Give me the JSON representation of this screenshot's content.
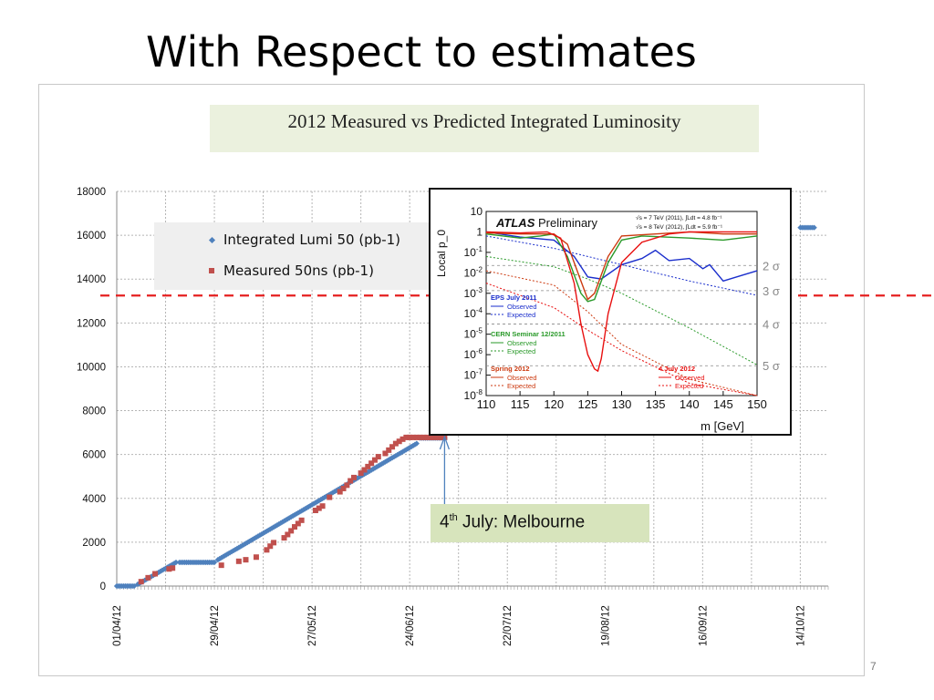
{
  "slide": {
    "title": "With Respect to estimates",
    "page_number": "7"
  },
  "annotation": {
    "prefix": "4",
    "sup": "th",
    "suffix": " July: Melbourne"
  },
  "chart_data": [
    {
      "type": "scatter",
      "title": "2012 Measured vs Predicted Integrated Luminosity",
      "xlabel": "",
      "ylabel": "",
      "x_type": "date",
      "xlim": [
        "2012-04-01",
        "2012-10-22"
      ],
      "ylim": [
        0,
        18000
      ],
      "y_ticks": [
        0,
        2000,
        4000,
        6000,
        8000,
        10000,
        12000,
        14000,
        16000,
        18000
      ],
      "x_tick_labels": [
        "01/04/12",
        "29/04/12",
        "27/05/12",
        "24/06/12",
        "22/07/12",
        "19/08/12",
        "16/09/12",
        "14/10/12"
      ],
      "grid": true,
      "legend_position": "top-left",
      "reference_line": {
        "y": 13250,
        "style": "dashed",
        "color": "#e52020"
      },
      "arrow_annotation": {
        "x": "2012-07-04",
        "label": "4th July: Melbourne"
      },
      "series": [
        {
          "name": "Integrated Lumi 50 (pb-1)",
          "marker": "diamond",
          "color": "#4f81bd",
          "segments": [
            {
              "from": "2012-04-01",
              "to": "2012-04-06",
              "y_from": 0,
              "y_to": 0
            },
            {
              "from": "2012-04-07",
              "to": "2012-04-18",
              "y_from": 80,
              "y_to": 1080
            },
            {
              "from": "2012-04-19",
              "to": "2012-04-29",
              "y_from": 1080,
              "y_to": 1080
            },
            {
              "from": "2012-04-30",
              "to": "2012-06-26",
              "y_from": 1200,
              "y_to": 6500
            },
            {
              "from": "2012-06-27",
              "to": "2012-07-04",
              "y_from": 6750,
              "y_to": 6750
            },
            {
              "from": "2012-10-14",
              "to": "2012-10-18",
              "y_from": 16350,
              "y_to": 16350
            }
          ]
        },
        {
          "name": "Measured 50ns (pb-1)",
          "marker": "square",
          "color": "#c0504d",
          "points": [
            [
              "2012-04-08",
              200
            ],
            [
              "2012-04-10",
              380
            ],
            [
              "2012-04-12",
              560
            ],
            [
              "2012-04-16",
              780
            ],
            [
              "2012-04-17",
              820
            ],
            [
              "2012-05-01",
              950
            ],
            [
              "2012-05-06",
              1130
            ],
            [
              "2012-05-08",
              1200
            ],
            [
              "2012-05-11",
              1320
            ],
            [
              "2012-05-14",
              1650
            ],
            [
              "2012-05-15",
              1820
            ],
            [
              "2012-05-16",
              1980
            ],
            [
              "2012-05-19",
              2200
            ],
            [
              "2012-05-20",
              2350
            ],
            [
              "2012-05-21",
              2520
            ],
            [
              "2012-05-22",
              2700
            ],
            [
              "2012-05-23",
              2850
            ],
            [
              "2012-05-24",
              3000
            ],
            [
              "2012-05-28",
              3450
            ],
            [
              "2012-05-29",
              3550
            ],
            [
              "2012-05-30",
              3650
            ],
            [
              "2012-06-01",
              4050
            ],
            [
              "2012-06-04",
              4300
            ],
            [
              "2012-06-05",
              4450
            ],
            [
              "2012-06-06",
              4600
            ],
            [
              "2012-06-07",
              4800
            ],
            [
              "2012-06-08",
              4950
            ],
            [
              "2012-06-10",
              5150
            ],
            [
              "2012-06-11",
              5300
            ],
            [
              "2012-06-12",
              5450
            ],
            [
              "2012-06-13",
              5600
            ],
            [
              "2012-06-14",
              5750
            ],
            [
              "2012-06-15",
              5900
            ],
            [
              "2012-06-17",
              6050
            ],
            [
              "2012-06-18",
              6200
            ],
            [
              "2012-06-19",
              6350
            ],
            [
              "2012-06-20",
              6500
            ],
            [
              "2012-06-21",
              6600
            ],
            [
              "2012-06-22",
              6700
            ],
            [
              "2012-06-23",
              6780
            ],
            [
              "2012-06-24",
              6780
            ],
            [
              "2012-06-25",
              6780
            ],
            [
              "2012-06-26",
              6780
            ],
            [
              "2012-06-27",
              6780
            ],
            [
              "2012-06-28",
              6780
            ],
            [
              "2012-06-29",
              6780
            ],
            [
              "2012-06-30",
              6780
            ],
            [
              "2012-07-01",
              6780
            ],
            [
              "2012-07-02",
              6780
            ],
            [
              "2012-07-03",
              6780
            ],
            [
              "2012-07-04",
              6780
            ]
          ]
        }
      ]
    },
    {
      "type": "line",
      "title": "ATLAS Preliminary",
      "xlabel": "m_H [GeV]",
      "ylabel": "Local p_0",
      "xlim": [
        110,
        150
      ],
      "ylim_log10": [
        -8,
        1
      ],
      "y_scale": "log",
      "x_ticks": [
        110,
        115,
        120,
        125,
        130,
        135,
        140,
        145,
        150
      ],
      "y_tick_labels": [
        "10",
        "1",
        "10-1",
        "10-2",
        "10-3",
        "10-4",
        "10-5",
        "10-6",
        "10-7",
        "10-8"
      ],
      "info_lines": [
        "√s = 7 TeV (2011), ∫Ldt = 4.8 fb⁻¹",
        "√s = 8 TeV (2012), ∫Ldt = 5.9 fb⁻¹"
      ],
      "sigma_labels": [
        "2 σ",
        "3 σ",
        "4 σ",
        "5 σ"
      ],
      "sigma_levels_log10": [
        -1.64,
        -2.87,
        -4.5,
        -6.54
      ],
      "legend_groups": [
        {
          "title": "EPS July 2011",
          "color": "#1a2ecc",
          "observed": "Observed",
          "expected": "Expected"
        },
        {
          "title": "CERN Seminar 12/2011",
          "color": "#2a9a2a",
          "observed": "Observed",
          "expected": "Expected"
        },
        {
          "title": "Spring 2012",
          "color": "#cc3a10",
          "observed": "Observed",
          "expected": "Expected"
        },
        {
          "title": "4 July 2012",
          "color": "#e81010",
          "observed": "Observed",
          "expected": "Expected"
        }
      ],
      "series": [
        {
          "name": "EPS July 2011 Observed",
          "color": "#1a2ecc",
          "dash": false,
          "x": [
            110,
            115,
            120,
            123,
            125,
            127,
            130,
            133,
            135,
            137,
            140,
            142,
            143,
            145,
            148,
            150
          ],
          "y_log10": [
            0,
            -0.25,
            -0.4,
            -1.2,
            -2.2,
            -2.3,
            -1.6,
            -1.3,
            -0.9,
            -1.4,
            -1.3,
            -1.8,
            -1.6,
            -2.4,
            -2.1,
            -1.9
          ]
        },
        {
          "name": "EPS July 2011 Expected",
          "color": "#1a2ecc",
          "dash": true,
          "x": [
            110,
            120,
            130,
            140,
            150
          ],
          "y_log10": [
            -0.2,
            -0.8,
            -1.6,
            -2.4,
            -3.1
          ]
        },
        {
          "name": "CERN Seminar 12/2011 Observed",
          "color": "#2a9a2a",
          "dash": false,
          "x": [
            110,
            115,
            118,
            120,
            122,
            124,
            125,
            126,
            128,
            130,
            133,
            140,
            145,
            150
          ],
          "y_log10": [
            -0.1,
            -0.3,
            -0.2,
            -0.1,
            -1.2,
            -3.0,
            -3.4,
            -3.3,
            -1.5,
            -0.4,
            -0.2,
            -0.3,
            -0.4,
            -0.2
          ]
        },
        {
          "name": "CERN Seminar 12/2011 Expected",
          "color": "#2a9a2a",
          "dash": true,
          "x": [
            110,
            120,
            125,
            130,
            140,
            150
          ],
          "y_log10": [
            -1.2,
            -1.7,
            -2.3,
            -3.0,
            -4.7,
            -6.5
          ]
        },
        {
          "name": "Spring 2012 Observed",
          "color": "#cc3a10",
          "dash": false,
          "x": [
            110,
            115,
            120,
            122,
            124,
            125,
            126,
            128,
            130,
            135,
            140,
            145,
            150
          ],
          "y_log10": [
            -0.05,
            -0.1,
            -0.1,
            -0.6,
            -2.4,
            -3.3,
            -3.0,
            -1.2,
            -0.2,
            -0.1,
            0,
            -0.1,
            -0.1
          ]
        },
        {
          "name": "Spring 2012 Expected",
          "color": "#cc3a10",
          "dash": true,
          "x": [
            110,
            120,
            125,
            130,
            140,
            150
          ],
          "y_log10": [
            -1.9,
            -2.6,
            -3.9,
            -5.5,
            -7.2,
            -8.0
          ]
        },
        {
          "name": "4 July 2012 Observed",
          "color": "#e81010",
          "dash": false,
          "x": [
            110,
            115,
            119,
            121,
            123,
            124,
            125,
            126,
            126.5,
            127,
            128,
            130,
            133,
            137,
            140,
            145,
            150
          ],
          "y_log10": [
            0,
            -0.05,
            0,
            -0.3,
            -2.5,
            -4.5,
            -6.0,
            -6.7,
            -6.8,
            -6.2,
            -4.0,
            -1.5,
            -0.5,
            -0.1,
            0,
            0,
            0
          ]
        },
        {
          "name": "4 July 2012 Expected",
          "color": "#e81010",
          "dash": true,
          "x": [
            110,
            120,
            125,
            130,
            140,
            150
          ],
          "y_log10": [
            -2.5,
            -3.7,
            -4.8,
            -5.8,
            -7.4,
            -8.0
          ]
        }
      ]
    }
  ]
}
